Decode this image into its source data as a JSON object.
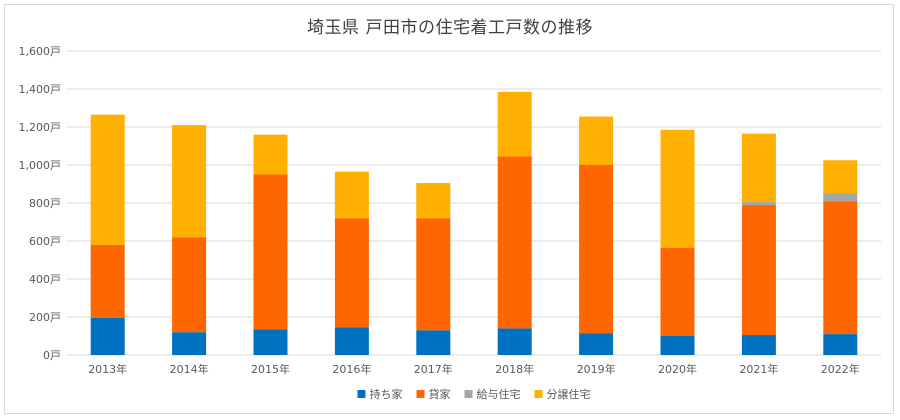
{
  "chart_data": {
    "type": "bar",
    "stacked": true,
    "title": "埼玉県 戸田市の住宅着工戸数の推移",
    "categories": [
      "2013年",
      "2014年",
      "2015年",
      "2016年",
      "2017年",
      "2018年",
      "2019年",
      "2020年",
      "2021年",
      "2022年"
    ],
    "series": [
      {
        "name": "持ち家",
        "color": "#0070C0",
        "values": [
          195,
          120,
          135,
          145,
          130,
          140,
          115,
          100,
          105,
          110
        ]
      },
      {
        "name": "貸家",
        "color": "#FF6600",
        "values": [
          385,
          500,
          815,
          575,
          590,
          905,
          885,
          465,
          685,
          700
        ]
      },
      {
        "name": "給与住宅",
        "color": "#A6A6A6",
        "values": [
          0,
          0,
          0,
          0,
          0,
          0,
          0,
          0,
          15,
          40
        ]
      },
      {
        "name": "分譲住宅",
        "color": "#FFB000",
        "values": [
          685,
          590,
          210,
          245,
          185,
          340,
          255,
          620,
          360,
          175
        ]
      }
    ],
    "ylim": [
      0,
      1600
    ],
    "yticks": [
      0,
      200,
      400,
      600,
      800,
      1000,
      1200,
      1400,
      1600
    ],
    "ytick_labels": [
      "0戸",
      "200戸",
      "400戸",
      "600戸",
      "800戸",
      "1,000戸",
      "1,200戸",
      "1,400戸",
      "1,600戸"
    ],
    "grid": true,
    "legend_position": "bottom"
  }
}
